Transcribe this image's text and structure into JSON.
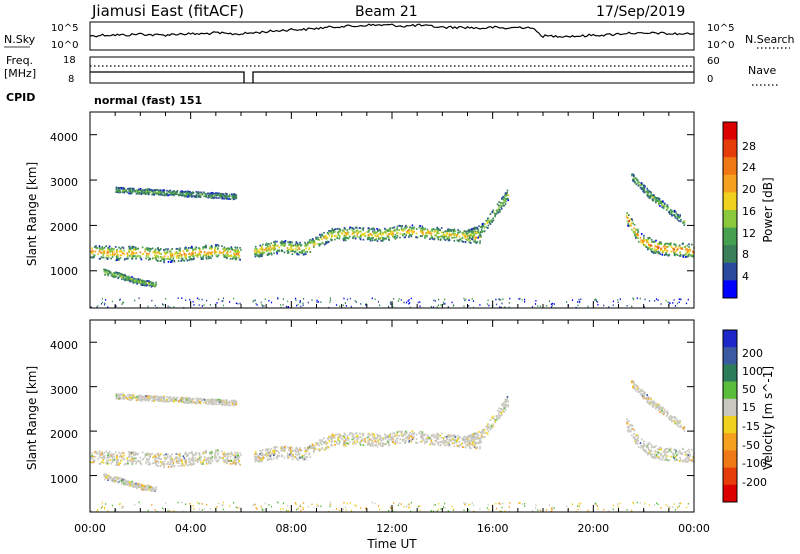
{
  "header": {
    "station": "Jiamusi East (fitACF)",
    "beam": "Beam 21",
    "date": "17/Sep/2019"
  },
  "noise_panel": {
    "left_label": "N.Sky",
    "left_ticks": [
      "10^5",
      "10^0"
    ],
    "right_label": "N.Search",
    "right_ticks": [
      "10^5",
      "10^0"
    ]
  },
  "freq_panel": {
    "left_label_line1": "Freq.",
    "left_label_line2": "[MHz]",
    "left_ticks": [
      "18",
      "8"
    ],
    "right_label": "Nave",
    "right_ticks": [
      "60",
      "0"
    ]
  },
  "cpid": {
    "label": "CPID",
    "value": "normal (fast) 151"
  },
  "power_panel": {
    "ylabel": "Slant Range [km]",
    "yticks": [
      "1000",
      "2000",
      "3000",
      "4000"
    ],
    "colorbar_label": "Power [dB]",
    "colorbar_ticks": [
      "4",
      "8",
      "12",
      "16",
      "20",
      "24",
      "28"
    ],
    "colorbar_colors": [
      "#0000ff",
      "#2a4a9e",
      "#3a7f5a",
      "#46a050",
      "#8cc83c",
      "#f0d21e",
      "#f5a01e",
      "#f07814",
      "#e63c0a",
      "#dc0000"
    ]
  },
  "velocity_panel": {
    "ylabel": "Slant Range [km]",
    "yticks": [
      "1000",
      "2000",
      "3000",
      "4000"
    ],
    "colorbar_label": "Velocity [m s^-1]",
    "colorbar_ticks": [
      "200",
      "100",
      "50",
      "15",
      "-15",
      "-50",
      "-100",
      "-200"
    ],
    "colorbar_colors": [
      "#1e28c8",
      "#3c5aa0",
      "#2e7d5a",
      "#5abe3c",
      "#c8c8c0",
      "#f0d21e",
      "#f5a01e",
      "#f07814",
      "#e63c0a",
      "#dc0000"
    ]
  },
  "x_axis": {
    "xlabel": "Time UT",
    "ticks": [
      "00:00",
      "04:00",
      "08:00",
      "12:00",
      "16:00",
      "20:00",
      "00:00"
    ]
  },
  "chart_data": {
    "type": "heatmap",
    "x_range_hours": [
      0,
      24
    ],
    "y_range_km": [
      180,
      4500
    ],
    "gap_hours": [
      6.05,
      6.45
    ],
    "noise_trace_hours": [
      0.0,
      0.5,
      1.0,
      1.5,
      2.0,
      2.5,
      3.0,
      3.5,
      4.0,
      4.5,
      5.0,
      5.5,
      6.0,
      6.5,
      7.0,
      7.5,
      8.0,
      8.5,
      9.0,
      9.5,
      10.0,
      10.5,
      11.0,
      11.5,
      12.0,
      12.5,
      13.0,
      13.5,
      14.0,
      14.5,
      15.0,
      15.5,
      16.0,
      16.5,
      17.0,
      17.5,
      18.0,
      18.5,
      19.0,
      19.5,
      20.0,
      20.5,
      21.0,
      21.5,
      22.0,
      22.5,
      23.0,
      23.5,
      24.0
    ],
    "noise_trace_level": [
      0.45,
      0.5,
      0.5,
      0.5,
      0.55,
      0.5,
      0.5,
      0.55,
      0.55,
      0.55,
      0.6,
      0.55,
      0.55,
      0.6,
      0.65,
      0.7,
      0.75,
      0.75,
      0.8,
      0.85,
      0.9,
      0.9,
      0.95,
      0.95,
      0.95,
      0.9,
      0.95,
      0.9,
      0.85,
      0.85,
      0.85,
      0.8,
      0.85,
      0.8,
      0.85,
      0.85,
      0.45,
      0.45,
      0.45,
      0.45,
      0.5,
      0.5,
      0.55,
      0.6,
      0.55,
      0.6,
      0.55,
      0.55,
      0.55
    ],
    "echo_bands": [
      {
        "name": "main",
        "t0": 0.0,
        "t1": 6.0,
        "range_center_km": [
          1450,
          1400,
          1420,
          1350,
          1400,
          1450,
          1380
        ],
        "width_km": 300,
        "power_db": 16
      },
      {
        "name": "main-2",
        "t0": 6.5,
        "t1": 15.5,
        "range_center_km": [
          1450,
          1550,
          1500,
          1800,
          1850,
          1800,
          1900,
          1850,
          1800,
          1750
        ],
        "width_km": 280,
        "power_db": 14
      },
      {
        "name": "rise",
        "t0": 15.0,
        "t1": 16.6,
        "range_center_km": [
          1800,
          1900,
          2300,
          2700
        ],
        "width_km": 250,
        "power_db": 10
      },
      {
        "name": "evening",
        "t0": 21.3,
        "t1": 24.0,
        "range_center_km": [
          2200,
          1700,
          1550,
          1500,
          1480,
          1450
        ],
        "width_km": 300,
        "power_db": 18
      },
      {
        "name": "low-ground",
        "t0": 0.5,
        "t1": 2.6,
        "range_center_km": [
          1000,
          900,
          780,
          700
        ],
        "width_km": 120,
        "power_db": 10
      },
      {
        "name": "upper-patch",
        "t0": 1.0,
        "t1": 5.8,
        "range_center_km": [
          2800,
          2750,
          2700,
          2650
        ],
        "width_km": 120,
        "power_db": 6
      },
      {
        "name": "upper-evening",
        "t0": 21.5,
        "t1": 23.6,
        "range_center_km": [
          3100,
          2700,
          2400,
          2100
        ],
        "width_km": 160,
        "power_db": 8
      }
    ]
  }
}
